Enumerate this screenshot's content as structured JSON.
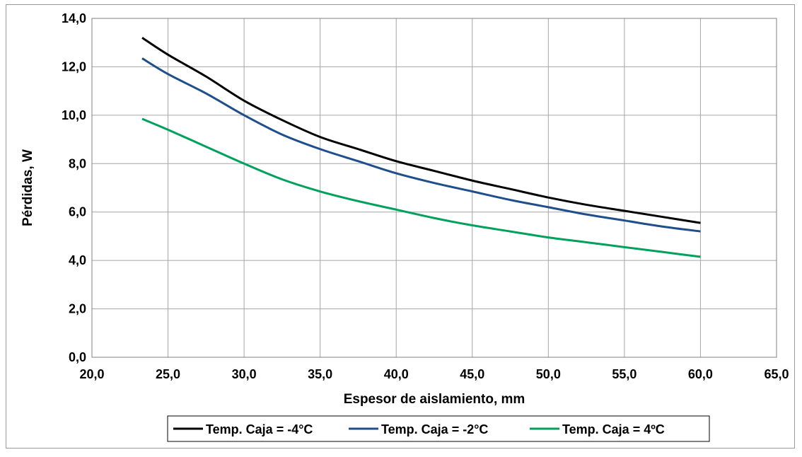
{
  "chart_data": {
    "type": "line",
    "title": "",
    "xlabel": "Espesor de aislamiento,  mm",
    "ylabel": "Pérdidas, W",
    "xlim": [
      20,
      65
    ],
    "ylim": [
      0,
      14
    ],
    "xticks": [
      20,
      25,
      30,
      35,
      40,
      45,
      50,
      55,
      60,
      65
    ],
    "yticks": [
      0,
      2,
      4,
      6,
      8,
      10,
      12,
      14
    ],
    "xtick_labels": [
      "20,0",
      "25,0",
      "30,0",
      "35,0",
      "40,0",
      "45,0",
      "50,0",
      "55,0",
      "60,0",
      "65,0"
    ],
    "ytick_labels": [
      "0,0",
      "2,0",
      "4,0",
      "6,0",
      "8,0",
      "10,0",
      "12,0",
      "14,0"
    ],
    "grid": true,
    "legend_position": "bottom",
    "series": [
      {
        "name": "Temp. Caja = -4°C",
        "color": "#000000",
        "x": [
          23.3,
          25,
          27.5,
          30,
          32.5,
          35,
          37.5,
          40,
          42.5,
          45,
          47.5,
          50,
          52.5,
          55,
          57.5,
          60
        ],
        "y": [
          13.2,
          12.5,
          11.6,
          10.6,
          9.8,
          9.1,
          8.6,
          8.1,
          7.7,
          7.3,
          6.95,
          6.6,
          6.3,
          6.05,
          5.8,
          5.55
        ]
      },
      {
        "name": "Temp. Caja = -2°C",
        "color": "#1f4e8c",
        "x": [
          23.3,
          25,
          27.5,
          30,
          32.5,
          35,
          37.5,
          40,
          42.5,
          45,
          47.5,
          50,
          52.5,
          55,
          57.5,
          60
        ],
        "y": [
          12.35,
          11.7,
          10.9,
          10.0,
          9.2,
          8.6,
          8.1,
          7.6,
          7.2,
          6.85,
          6.5,
          6.2,
          5.9,
          5.65,
          5.4,
          5.2
        ]
      },
      {
        "name": "Temp. Caja = 4ºC",
        "color": "#00a15c",
        "x": [
          23.3,
          25,
          27.5,
          30,
          32.5,
          35,
          37.5,
          40,
          42.5,
          45,
          47.5,
          50,
          52.5,
          55,
          57.5,
          60
        ],
        "y": [
          9.85,
          9.4,
          8.7,
          8.0,
          7.35,
          6.85,
          6.45,
          6.1,
          5.75,
          5.45,
          5.2,
          4.95,
          4.75,
          4.55,
          4.35,
          4.15
        ]
      }
    ]
  }
}
